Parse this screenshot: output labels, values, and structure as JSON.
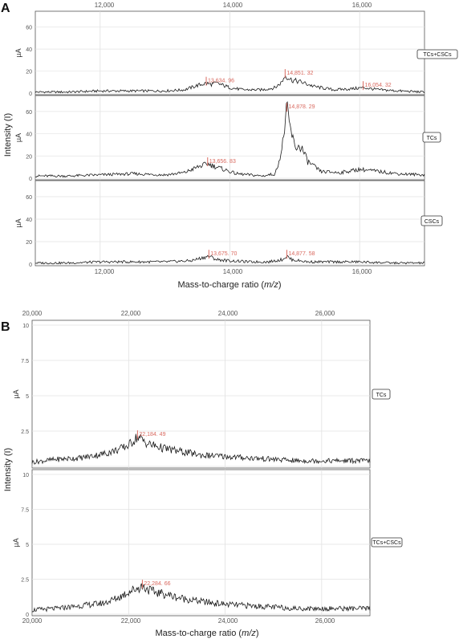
{
  "panels": [
    {
      "letter": "A",
      "ylabel": "Intensity (I)",
      "xlabel_main": "Mass-to-charge ratio (",
      "xlabel_italic": "m/z",
      "xlabel_end": ")",
      "x_ticks": [
        "12,000",
        "14,000",
        "16,000"
      ]
    },
    {
      "letter": "B",
      "ylabel": "Intensity (I)",
      "xlabel_main": "Mass-to-charge ratio (",
      "xlabel_italic": "m/z",
      "xlabel_end": ")",
      "x_ticks": [
        "20,000",
        "22,000",
        "24,000",
        "26,000"
      ]
    }
  ],
  "chart_data": [
    {
      "type": "line",
      "panel": "A",
      "subplot": "TCs+CSCs",
      "unit_label": "µA",
      "xlim": [
        11000,
        17000
      ],
      "ylim": [
        0,
        70
      ],
      "x_tick_values": [
        12000,
        14000,
        16000
      ],
      "y_ticks": [
        0,
        20,
        40,
        60
      ],
      "grid": true,
      "peak_color": "#d9695f",
      "series": [
        {
          "x": [
            11000,
            11500,
            12000,
            12500,
            13000,
            13300,
            13500,
            13635,
            13700,
            13800,
            14000,
            14200,
            14500,
            14700,
            14800,
            14851,
            14950,
            15100,
            15300,
            15600,
            15900,
            16054,
            16300,
            16600,
            17000
          ],
          "values": [
            1,
            1,
            2,
            2,
            2,
            3,
            7,
            9,
            8,
            9,
            5,
            3,
            3,
            5,
            10,
            16,
            12,
            10,
            6,
            3,
            4,
            5,
            3,
            2,
            1
          ]
        }
      ],
      "annotations": [
        {
          "x": 13634.96,
          "label": "13,634. 96"
        },
        {
          "x": 14851.32,
          "label": "14,851. 32"
        },
        {
          "x": 16054.32,
          "label": "16,054. 32"
        }
      ]
    },
    {
      "type": "line",
      "panel": "A",
      "subplot": "TCs",
      "unit_label": "µA",
      "xlim": [
        11000,
        17000
      ],
      "ylim": [
        0,
        70
      ],
      "x_tick_values": [
        12000,
        14000,
        16000
      ],
      "y_ticks": [
        0,
        20,
        40,
        60
      ],
      "grid": true,
      "peak_color": "#d9695f",
      "series": [
        {
          "x": [
            11000,
            11500,
            12000,
            12500,
            13000,
            13300,
            13500,
            13657,
            13750,
            13900,
            14100,
            14300,
            14500,
            14700,
            14800,
            14878,
            14930,
            15000,
            15100,
            15200,
            15400,
            15700,
            16000,
            16300,
            16600,
            17000
          ],
          "values": [
            2,
            2,
            3,
            4,
            3,
            5,
            10,
            13,
            11,
            8,
            4,
            3,
            2,
            4,
            25,
            62,
            45,
            28,
            28,
            15,
            6,
            5,
            8,
            6,
            4,
            3
          ]
        }
      ],
      "annotations": [
        {
          "x": 13656.83,
          "label": "13,656. 83"
        },
        {
          "x": 14878.29,
          "label": "14,878. 29"
        }
      ]
    },
    {
      "type": "line",
      "panel": "A",
      "subplot": "CSCs",
      "unit_label": "µA",
      "xlim": [
        11000,
        17000
      ],
      "ylim": [
        0,
        70
      ],
      "x_tick_values": [
        12000,
        14000,
        16000
      ],
      "y_ticks": [
        0,
        20,
        40,
        60
      ],
      "grid": true,
      "peak_color": "#d9695f",
      "series": [
        {
          "x": [
            11000,
            11500,
            12000,
            12500,
            13000,
            13400,
            13600,
            13676,
            13800,
            14000,
            14300,
            14600,
            14800,
            14878,
            14950,
            15200,
            15600,
            16000,
            16500,
            17000
          ],
          "values": [
            1,
            1,
            2,
            2,
            2,
            3,
            6,
            7,
            4,
            3,
            2,
            2,
            4,
            7,
            4,
            2,
            2,
            2,
            1,
            1
          ]
        }
      ],
      "annotations": [
        {
          "x": 13675.7,
          "label": "13,675. 70"
        },
        {
          "x": 14877.58,
          "label": "14,877. 58"
        }
      ]
    },
    {
      "type": "line",
      "panel": "B",
      "subplot": "TCs",
      "unit_label": "µA",
      "xlim": [
        20000,
        27000
      ],
      "ylim": [
        0,
        10
      ],
      "x_tick_values": [
        20000,
        22000,
        24000,
        26000
      ],
      "y_ticks": [
        0,
        2.5,
        5,
        7.5,
        10
      ],
      "y_tick_labels": [
        "",
        "2.5",
        "5",
        "7.5",
        "10"
      ],
      "grid": true,
      "peak_color": "#d9695f",
      "series": [
        {
          "x": [
            20000,
            20500,
            21000,
            21500,
            21800,
            22000,
            22184,
            22400,
            22700,
            23000,
            23500,
            24000,
            24500,
            25000,
            25500,
            26000,
            26500,
            27000
          ],
          "values": [
            0.3,
            0.5,
            0.6,
            0.9,
            1.2,
            1.5,
            2.1,
            1.6,
            1.3,
            1.1,
            0.8,
            0.7,
            0.6,
            0.5,
            0.4,
            0.4,
            0.4,
            0.4
          ]
        }
      ],
      "annotations": [
        {
          "x": 22184.49,
          "label": "22,184. 49"
        }
      ]
    },
    {
      "type": "line",
      "panel": "B",
      "subplot": "TCs+CSCs",
      "unit_label": "µA",
      "xlim": [
        20000,
        27000
      ],
      "ylim": [
        0,
        10
      ],
      "x_tick_values": [
        20000,
        22000,
        24000,
        26000
      ],
      "y_ticks": [
        0,
        2.5,
        5,
        7.5,
        10
      ],
      "y_tick_labels": [
        "0",
        "2.5",
        "5",
        "7.5",
        "10"
      ],
      "grid": true,
      "peak_color": "#d9695f",
      "series": [
        {
          "x": [
            20000,
            20500,
            21000,
            21500,
            21800,
            22000,
            22284,
            22500,
            22800,
            23000,
            23500,
            24000,
            24500,
            25000,
            25500,
            26000,
            26500,
            27000
          ],
          "values": [
            0.3,
            0.4,
            0.6,
            0.8,
            1.2,
            1.6,
            2.0,
            1.6,
            1.4,
            1.2,
            0.9,
            0.7,
            0.6,
            0.5,
            0.4,
            0.4,
            0.4,
            0.4
          ]
        }
      ],
      "annotations": [
        {
          "x": 22284.66,
          "label": "22,284. 66"
        }
      ]
    }
  ]
}
